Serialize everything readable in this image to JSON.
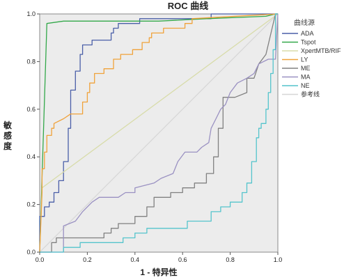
{
  "chart_data": {
    "type": "line",
    "title": "ROC 曲线",
    "xlabel": "1 - 特异性",
    "ylabel": "敏感度",
    "xlim": [
      0,
      1
    ],
    "ylim": [
      0,
      1
    ],
    "x_ticks": [
      "0.0",
      "0.2",
      "0.4",
      "0.6",
      "0.8",
      "1.0"
    ],
    "y_ticks": [
      "0.0",
      "0.2",
      "0.4",
      "0.6",
      "0.8",
      "1.0"
    ],
    "grid": false,
    "legend_title": "曲线源",
    "legend_position": "right",
    "series": [
      {
        "name": "ADA",
        "color": "#4a5fa8",
        "points": [
          [
            0,
            0
          ],
          [
            0,
            0.15
          ],
          [
            0.02,
            0.15
          ],
          [
            0.02,
            0.19
          ],
          [
            0.04,
            0.19
          ],
          [
            0.04,
            0.21
          ],
          [
            0.06,
            0.21
          ],
          [
            0.06,
            0.25
          ],
          [
            0.08,
            0.25
          ],
          [
            0.08,
            0.3
          ],
          [
            0.1,
            0.3
          ],
          [
            0.1,
            0.38
          ],
          [
            0.12,
            0.38
          ],
          [
            0.12,
            0.52
          ],
          [
            0.13,
            0.52
          ],
          [
            0.13,
            0.68
          ],
          [
            0.15,
            0.68
          ],
          [
            0.15,
            0.76
          ],
          [
            0.17,
            0.76
          ],
          [
            0.17,
            0.83
          ],
          [
            0.18,
            0.83
          ],
          [
            0.18,
            0.87
          ],
          [
            0.22,
            0.87
          ],
          [
            0.22,
            0.89
          ],
          [
            0.3,
            0.89
          ],
          [
            0.3,
            0.92
          ],
          [
            0.31,
            0.92
          ],
          [
            0.31,
            0.94
          ],
          [
            0.33,
            0.94
          ],
          [
            0.33,
            0.96
          ],
          [
            0.42,
            0.96
          ],
          [
            0.42,
            0.98
          ],
          [
            0.72,
            0.98
          ],
          [
            0.72,
            1.0
          ],
          [
            1,
            1
          ]
        ]
      },
      {
        "name": "Tspot",
        "color": "#33a84a",
        "points": [
          [
            0,
            0
          ],
          [
            0.03,
            0.96
          ],
          [
            0.1,
            0.97
          ],
          [
            0.5,
            0.97
          ],
          [
            0.7,
            0.98
          ],
          [
            0.95,
            0.99
          ],
          [
            0.99,
            1.0
          ],
          [
            1,
            1
          ]
        ]
      },
      {
        "name": "XpertMTB/RIF",
        "color": "#d8dcaa",
        "points": [
          [
            0,
            0
          ],
          [
            0.01,
            0.27
          ],
          [
            1,
            1
          ]
        ]
      },
      {
        "name": "LY",
        "color": "#f0a23a",
        "points": [
          [
            0,
            0
          ],
          [
            0.01,
            0.25
          ],
          [
            0.01,
            0.35
          ],
          [
            0.02,
            0.35
          ],
          [
            0.02,
            0.42
          ],
          [
            0.03,
            0.42
          ],
          [
            0.03,
            0.49
          ],
          [
            0.05,
            0.49
          ],
          [
            0.05,
            0.52
          ],
          [
            0.06,
            0.52
          ],
          [
            0.06,
            0.54
          ],
          [
            0.1,
            0.56
          ],
          [
            0.13,
            0.58
          ],
          [
            0.18,
            0.58
          ],
          [
            0.18,
            0.63
          ],
          [
            0.2,
            0.63
          ],
          [
            0.2,
            0.67
          ],
          [
            0.21,
            0.67
          ],
          [
            0.21,
            0.71
          ],
          [
            0.23,
            0.71
          ],
          [
            0.23,
            0.75
          ],
          [
            0.27,
            0.75
          ],
          [
            0.27,
            0.77
          ],
          [
            0.31,
            0.77
          ],
          [
            0.31,
            0.81
          ],
          [
            0.34,
            0.81
          ],
          [
            0.34,
            0.83
          ],
          [
            0.39,
            0.83
          ],
          [
            0.39,
            0.85
          ],
          [
            0.43,
            0.85
          ],
          [
            0.43,
            0.88
          ],
          [
            0.46,
            0.88
          ],
          [
            0.46,
            0.9
          ],
          [
            0.47,
            0.9
          ],
          [
            0.47,
            0.92
          ],
          [
            0.52,
            0.92
          ],
          [
            0.52,
            0.94
          ],
          [
            0.61,
            0.94
          ],
          [
            0.61,
            0.96
          ],
          [
            0.64,
            0.96
          ],
          [
            0.64,
            0.98
          ],
          [
            1,
            1
          ]
        ]
      },
      {
        "name": "ME",
        "color": "#808080",
        "points": [
          [
            0,
            0
          ],
          [
            0.05,
            0
          ],
          [
            0.05,
            0.04
          ],
          [
            0.07,
            0.04
          ],
          [
            0.07,
            0.06
          ],
          [
            0.27,
            0.06
          ],
          [
            0.27,
            0.08
          ],
          [
            0.3,
            0.08
          ],
          [
            0.3,
            0.1
          ],
          [
            0.33,
            0.1
          ],
          [
            0.33,
            0.12
          ],
          [
            0.4,
            0.12
          ],
          [
            0.4,
            0.15
          ],
          [
            0.45,
            0.15
          ],
          [
            0.45,
            0.19
          ],
          [
            0.48,
            0.19
          ],
          [
            0.48,
            0.23
          ],
          [
            0.55,
            0.23
          ],
          [
            0.55,
            0.25
          ],
          [
            0.6,
            0.25
          ],
          [
            0.6,
            0.27
          ],
          [
            0.65,
            0.27
          ],
          [
            0.65,
            0.29
          ],
          [
            0.7,
            0.29
          ],
          [
            0.7,
            0.33
          ],
          [
            0.73,
            0.33
          ],
          [
            0.73,
            0.4
          ],
          [
            0.75,
            0.4
          ],
          [
            0.75,
            0.52
          ],
          [
            0.77,
            0.52
          ],
          [
            0.77,
            0.65
          ],
          [
            0.82,
            0.65
          ],
          [
            0.87,
            0.67
          ],
          [
            0.87,
            0.73
          ],
          [
            0.9,
            0.73
          ],
          [
            0.92,
            0.79
          ],
          [
            0.95,
            0.83
          ],
          [
            0.99,
            1.0
          ],
          [
            1,
            1
          ]
        ]
      },
      {
        "name": "MA",
        "color": "#9a91c2",
        "points": [
          [
            0,
            0
          ],
          [
            0.1,
            0
          ],
          [
            0.1,
            0.11
          ],
          [
            0.15,
            0.13
          ],
          [
            0.18,
            0.17
          ],
          [
            0.22,
            0.21
          ],
          [
            0.25,
            0.23
          ],
          [
            0.33,
            0.23
          ],
          [
            0.36,
            0.25
          ],
          [
            0.4,
            0.25
          ],
          [
            0.4,
            0.27
          ],
          [
            0.48,
            0.29
          ],
          [
            0.51,
            0.31
          ],
          [
            0.56,
            0.33
          ],
          [
            0.58,
            0.38
          ],
          [
            0.61,
            0.42
          ],
          [
            0.66,
            0.42
          ],
          [
            0.68,
            0.44
          ],
          [
            0.71,
            0.46
          ],
          [
            0.72,
            0.52
          ],
          [
            0.74,
            0.56
          ],
          [
            0.76,
            0.6
          ],
          [
            0.78,
            0.62
          ],
          [
            0.8,
            0.67
          ],
          [
            0.83,
            0.71
          ],
          [
            0.87,
            0.73
          ],
          [
            0.9,
            0.75
          ],
          [
            0.92,
            0.79
          ],
          [
            0.96,
            0.81
          ],
          [
            0.99,
            0.81
          ],
          [
            1,
            1
          ]
        ]
      },
      {
        "name": "NE",
        "color": "#54c4cc",
        "points": [
          [
            0,
            0
          ],
          [
            0.1,
            0
          ],
          [
            0.1,
            0.02
          ],
          [
            0.17,
            0.02
          ],
          [
            0.17,
            0.04
          ],
          [
            0.35,
            0.04
          ],
          [
            0.35,
            0.06
          ],
          [
            0.4,
            0.06
          ],
          [
            0.4,
            0.08
          ],
          [
            0.45,
            0.08
          ],
          [
            0.45,
            0.1
          ],
          [
            0.62,
            0.1
          ],
          [
            0.62,
            0.13
          ],
          [
            0.72,
            0.13
          ],
          [
            0.72,
            0.17
          ],
          [
            0.76,
            0.17
          ],
          [
            0.76,
            0.19
          ],
          [
            0.8,
            0.19
          ],
          [
            0.8,
            0.21
          ],
          [
            0.85,
            0.21
          ],
          [
            0.85,
            0.25
          ],
          [
            0.87,
            0.25
          ],
          [
            0.87,
            0.29
          ],
          [
            0.89,
            0.29
          ],
          [
            0.89,
            0.38
          ],
          [
            0.91,
            0.38
          ],
          [
            0.91,
            0.48
          ],
          [
            0.92,
            0.48
          ],
          [
            0.92,
            0.52
          ],
          [
            0.93,
            0.52
          ],
          [
            0.93,
            0.54
          ],
          [
            0.95,
            0.54
          ],
          [
            0.95,
            0.6
          ],
          [
            0.96,
            0.6
          ],
          [
            0.96,
            0.67
          ],
          [
            0.97,
            0.67
          ],
          [
            0.97,
            0.75
          ],
          [
            0.98,
            0.75
          ],
          [
            0.98,
            0.85
          ],
          [
            0.99,
            0.85
          ],
          [
            0.99,
            1.0
          ],
          [
            1,
            1
          ]
        ]
      },
      {
        "name": "参考线",
        "color": "#d6d6d6",
        "points": [
          [
            0,
            0
          ],
          [
            1,
            1
          ]
        ]
      }
    ]
  }
}
